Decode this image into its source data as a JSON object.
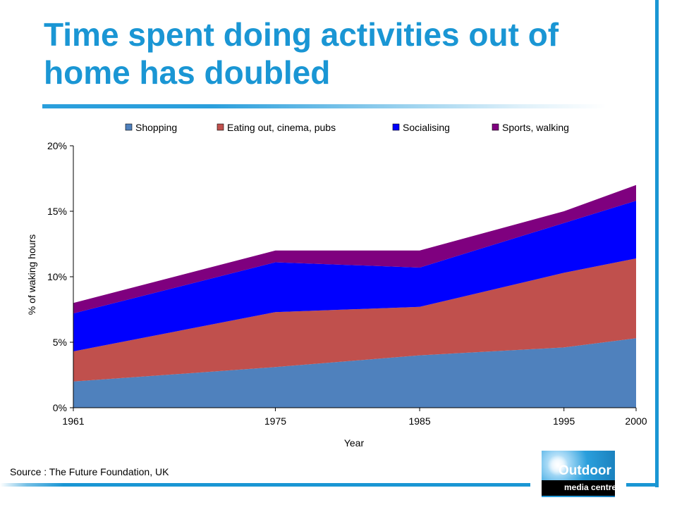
{
  "slide": {
    "title": "Time spent doing activities out of home has doubled",
    "source": "Source : The Future Foundation, UK"
  },
  "logo": {
    "word": "Outdoor",
    "sub": "media centre"
  },
  "chart_data": {
    "type": "area",
    "stacked": true,
    "title": "",
    "xlabel": "Year",
    "ylabel": "% of waking hours",
    "x": [
      "1961",
      "1975",
      "1985",
      "1995",
      "2000"
    ],
    "ylim": [
      0,
      20
    ],
    "yticks": [
      "0%",
      "5%",
      "10%",
      "15%",
      "20%"
    ],
    "yunit": "%",
    "grid": false,
    "legend_position": "top",
    "series": [
      {
        "name": "Shopping",
        "color": "#4f81bd",
        "values": [
          2.0,
          3.1,
          4.0,
          4.6,
          5.3
        ]
      },
      {
        "name": "Eating out, cinema, pubs",
        "color": "#c0504d",
        "values": [
          2.3,
          4.2,
          3.7,
          5.7,
          6.1
        ]
      },
      {
        "name": "Socialising",
        "color": "#0000ff",
        "values": [
          2.9,
          3.8,
          3.0,
          3.8,
          4.4
        ]
      },
      {
        "name": "Sports, walking",
        "color": "#7f007f",
        "values": [
          0.8,
          0.9,
          1.3,
          0.9,
          1.2
        ]
      }
    ]
  }
}
